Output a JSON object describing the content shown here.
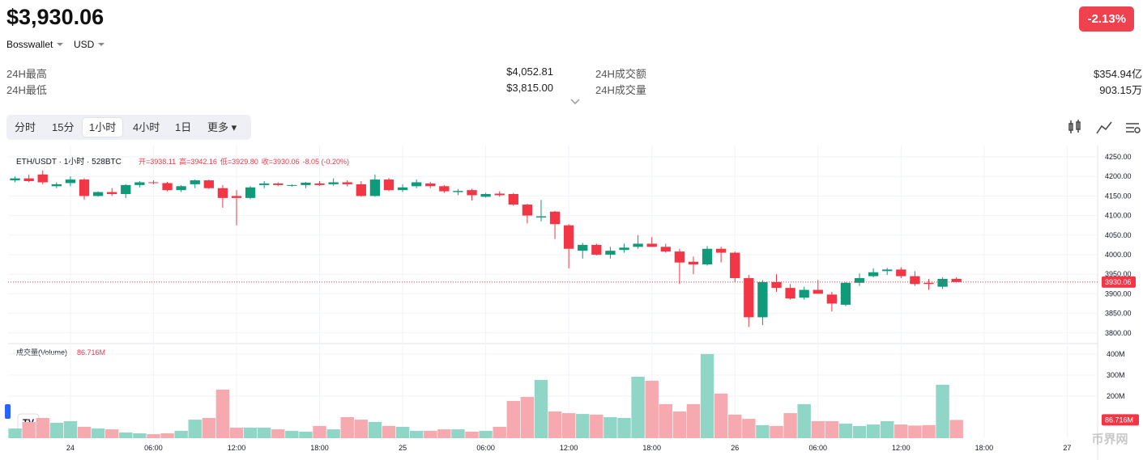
{
  "header": {
    "price": "$3,930.06",
    "change": "-2.13%",
    "wallet": "Bosswallet",
    "currency": "USD"
  },
  "stats": [
    {
      "label": "24H最高",
      "value": "$4,052.81"
    },
    {
      "label": "24H最低",
      "value": "$3,815.00"
    },
    {
      "label": "24H成交额",
      "value": "$354.94亿"
    },
    {
      "label": "24H成交量",
      "value": "903.15万"
    }
  ],
  "tabs": [
    "分时",
    "15分",
    "1小时",
    "4小时",
    "1日",
    "更多"
  ],
  "active_tab": "1小时",
  "chart_data": {
    "type": "candlestick",
    "title": "ETH/USDT · 1小时 · 528BTC",
    "legend_items": [
      "开=3938.11",
      "高=3942.16",
      "低=3929.80",
      "收=3930.06",
      "-8.05 (-0.20%)"
    ],
    "up_color": "#0f9a7a",
    "down_color": "#f23645",
    "up_volume_color": "#8fd6c6",
    "down_volume_color": "#f7a9b0",
    "open": [
      4190,
      4195,
      4205,
      4175,
      4183,
      4192,
      4150,
      4160,
      4155,
      4178,
      4185,
      4183,
      4165,
      4180,
      4190,
      4170,
      4150,
      4145,
      4178,
      4182,
      4176,
      4178,
      4182,
      4180,
      4185,
      4180,
      4150,
      4192,
      4165,
      4175,
      4182,
      4175,
      4160,
      4165,
      4148,
      4156,
      4155,
      4128,
      4095,
      4110,
      4075,
      4010,
      4025,
      4000,
      4012,
      4020,
      4028,
      4020,
      4008,
      3982,
      3975,
      4015,
      4005,
      3940,
      3840,
      3930,
      3915,
      3890,
      3910,
      3898,
      3872,
      3928,
      3945,
      3958,
      3962,
      3945,
      3928,
      3918,
      3938.11
    ],
    "high": [
      4200,
      4205,
      4215,
      4185,
      4200,
      4195,
      4162,
      4170,
      4180,
      4188,
      4190,
      4186,
      4178,
      4192,
      4192,
      4178,
      4165,
      4175,
      4188,
      4185,
      4180,
      4186,
      4188,
      4195,
      4190,
      4188,
      4205,
      4196,
      4180,
      4192,
      4186,
      4178,
      4168,
      4168,
      4158,
      4162,
      4158,
      4130,
      4140,
      4112,
      4078,
      4030,
      4028,
      4020,
      4028,
      4050,
      4045,
      4028,
      4015,
      3995,
      4022,
      4020,
      4008,
      3948,
      3935,
      3950,
      3925,
      3918,
      3935,
      3905,
      3930,
      3952,
      3965,
      3966,
      3968,
      3958,
      3938,
      3942,
      3942.16
    ],
    "low": [
      4185,
      4185,
      4180,
      4170,
      4175,
      4140,
      4148,
      4150,
      4145,
      4172,
      4180,
      4162,
      4160,
      4170,
      4168,
      4120,
      4075,
      4142,
      4170,
      4175,
      4174,
      4170,
      4176,
      4176,
      4175,
      4148,
      4148,
      4162,
      4160,
      4170,
      4170,
      4158,
      4152,
      4138,
      4146,
      4148,
      4125,
      4080,
      4085,
      4040,
      3965,
      3990,
      3998,
      3990,
      4005,
      4015,
      4020,
      4005,
      3925,
      3950,
      3972,
      3980,
      3930,
      3815,
      3820,
      3905,
      3885,
      3885,
      3900,
      3855,
      3868,
      3920,
      3942,
      3948,
      3940,
      3920,
      3910,
      3912,
      3929.8
    ],
    "close": [
      4195,
      4188,
      4185,
      4180,
      4192,
      4150,
      4160,
      4155,
      4178,
      4185,
      4183,
      4165,
      4175,
      4190,
      4170,
      4145,
      4145,
      4172,
      4182,
      4178,
      4178,
      4184,
      4178,
      4185,
      4180,
      4150,
      4192,
      4165,
      4172,
      4185,
      4175,
      4162,
      4163,
      4152,
      4155,
      4152,
      4128,
      4100,
      4098,
      4078,
      4015,
      4025,
      4000,
      4010,
      4018,
      4028,
      4020,
      4008,
      3980,
      3975,
      4015,
      4005,
      3940,
      3840,
      3930,
      3915,
      3888,
      3910,
      3900,
      3875,
      3928,
      3940,
      3955,
      3962,
      3945,
      3925,
      3925,
      3938,
      3930.06
    ],
    "ylim": [
      3783,
      4279
    ],
    "yticks": [
      {
        "value": 3800,
        "label": "3800.00"
      },
      {
        "value": 3850,
        "label": "3850.00"
      },
      {
        "value": 3900,
        "label": "3900.00"
      },
      {
        "value": 3950,
        "label": "3950.00"
      },
      {
        "value": 4000,
        "label": "4000.00"
      },
      {
        "value": 4050,
        "label": "4050.00"
      },
      {
        "value": 4100,
        "label": "4100.00"
      },
      {
        "value": 4150,
        "label": "4150.00"
      },
      {
        "value": 4200,
        "label": "4200.00"
      },
      {
        "value": 4250,
        "label": "4250.00"
      }
    ],
    "last_price": 3930.06,
    "xlim": [
      -0.5,
      78.2
    ],
    "xticks": [
      {
        "value": 4,
        "label": "24"
      },
      {
        "value": 10,
        "label": "06:00"
      },
      {
        "value": 16,
        "label": "12:00"
      },
      {
        "value": 22,
        "label": "18:00"
      },
      {
        "value": 28,
        "label": "25"
      },
      {
        "value": 34,
        "label": "06:00"
      },
      {
        "value": 40,
        "label": "12:00"
      },
      {
        "value": 46,
        "label": "18:00"
      },
      {
        "value": 52,
        "label": "26"
      },
      {
        "value": 58,
        "label": "06:00"
      },
      {
        "value": 64,
        "label": "12:00"
      },
      {
        "value": 70,
        "label": "18:00"
      },
      {
        "value": 76,
        "label": "27"
      }
    ],
    "volume": {
      "title": "成交量(Volume)",
      "last_label": "86.716M",
      "values": [
        46,
        77,
        96,
        73,
        81,
        54,
        46,
        42,
        27,
        23,
        19,
        23,
        35,
        88,
        96,
        231,
        50,
        50,
        50,
        42,
        35,
        31,
        58,
        42,
        100,
        88,
        77,
        58,
        54,
        35,
        35,
        42,
        42,
        31,
        35,
        54,
        177,
        196,
        277,
        127,
        119,
        115,
        112,
        100,
        96,
        292,
        273,
        162,
        127,
        162,
        400,
        212,
        112,
        92,
        62,
        58,
        119,
        162,
        81,
        81,
        69,
        58,
        65,
        81,
        65,
        60,
        62,
        254,
        86.716
      ],
      "ylim": [
        0,
        438
      ],
      "yticks": [
        {
          "value": 200,
          "label": "200M"
        },
        {
          "value": 300,
          "label": "300M"
        },
        {
          "value": 400,
          "label": "400M"
        }
      ]
    }
  },
  "watermark": "币界网"
}
